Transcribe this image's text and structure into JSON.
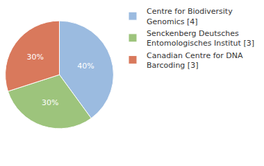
{
  "chart_data": {
    "type": "pie",
    "categories": [
      "Centre for Biodiversity Genomics [4]",
      "Senckenberg Deutsches Entomologisches Institut [3]",
      "Canadian Centre for DNA Barcoding [3]"
    ],
    "values": [
      40,
      30,
      30
    ],
    "value_labels": [
      "40%",
      "30%",
      "30%"
    ],
    "colors": [
      "#9bbbe0",
      "#9dc47c",
      "#d9795c"
    ],
    "data_labels": true,
    "legend": "right"
  }
}
